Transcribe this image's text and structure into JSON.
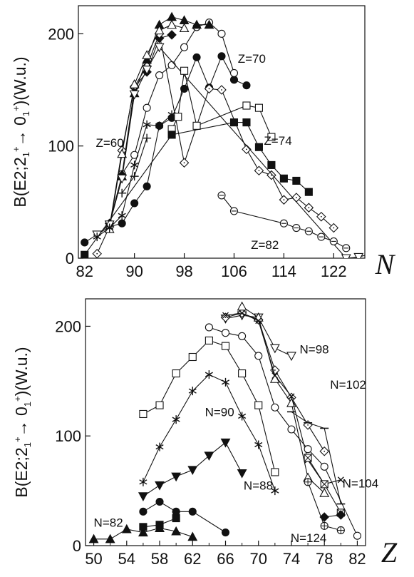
{
  "chart_data": [
    {
      "type": "scatter",
      "xlabel": "N",
      "ylabel_parts": [
        "B(E2;2",
        "1",
        "+",
        "→ 0",
        "1",
        "+",
        ")(W.u.)"
      ],
      "xlim": [
        81,
        127
      ],
      "ylim": [
        0,
        225
      ],
      "xticks": [
        82,
        90,
        98,
        106,
        114,
        122
      ],
      "yticks": [
        0,
        100,
        200
      ],
      "annotations": [
        {
          "text": "Z=70",
          "x": 106.6,
          "y": 178
        },
        {
          "text": "Z=60",
          "x": 83.8,
          "y": 103
        },
        {
          "text": "Z=74",
          "x": 110.8,
          "y": 105
        },
        {
          "text": "Z=82",
          "x": 108.7,
          "y": 12
        }
      ],
      "series": [
        {
          "marker": "filled-circle",
          "points": [
            [
              82,
              14
            ],
            [
              86,
              28
            ],
            [
              88,
              31
            ],
            [
              90,
              49
            ],
            [
              92,
              64
            ],
            [
              94,
              118
            ],
            [
              96,
              125
            ],
            [
              98,
              151
            ],
            [
              100,
              179
            ],
            [
              102,
              152
            ],
            [
              104,
              180
            ],
            [
              106,
              159
            ],
            [
              108,
              154
            ]
          ]
        },
        {
          "marker": "open-circle",
          "points": [
            [
              88,
              75
            ],
            [
              90,
              92
            ],
            [
              92,
              134
            ],
            [
              94,
              163
            ],
            [
              96,
              172
            ],
            [
              98,
              188
            ],
            [
              100,
              206
            ],
            [
              102,
              210
            ],
            [
              104,
              200
            ],
            [
              106,
              165
            ]
          ]
        },
        {
          "marker": "filled-diamond",
          "points": [
            [
              86,
              31
            ],
            [
              88,
              74
            ],
            [
              90,
              152
            ],
            [
              92,
              166
            ],
            [
              94,
              196
            ],
            [
              96,
              199
            ]
          ]
        },
        {
          "marker": "open-diamond",
          "points": [
            [
              84,
              4
            ],
            [
              86,
              28
            ],
            [
              88,
              96
            ],
            [
              90,
              153
            ],
            [
              92,
              171
            ],
            [
              94,
              200
            ],
            [
              98,
              85
            ],
            [
              102,
              151
            ],
            [
              104,
              150
            ],
            [
              108,
              97
            ],
            [
              110,
              78
            ],
            [
              112,
              74
            ],
            [
              114,
              52
            ],
            [
              116,
              54
            ],
            [
              118,
              45
            ],
            [
              120,
              37
            ],
            [
              122,
              27
            ]
          ]
        },
        {
          "marker": "filled-triangle",
          "points": [
            [
              88,
              73
            ],
            [
              90,
              147
            ],
            [
              92,
              177
            ],
            [
              94,
              208
            ],
            [
              96,
              215
            ],
            [
              98,
              212
            ],
            [
              100,
              208
            ],
            [
              102,
              208
            ]
          ]
        },
        {
          "marker": "open-triangle",
          "points": [
            [
              86,
              26
            ],
            [
              88,
              93
            ],
            [
              90,
              155
            ],
            [
              92,
              181
            ],
            [
              94,
              203
            ],
            [
              96,
              208
            ],
            [
              98,
              205
            ]
          ]
        },
        {
          "marker": "open-inverted-triangle",
          "points": [
            [
              84,
              21
            ],
            [
              86,
              30
            ],
            [
              88,
              71
            ],
            [
              90,
              146
            ],
            [
              92,
              168
            ],
            [
              94,
              188
            ],
            [
              124,
              0
            ],
            [
              126,
              1
            ],
            [
              128,
              4
            ]
          ]
        },
        {
          "marker": "asterisk",
          "points": [
            [
              84,
              19
            ],
            [
              86,
              27
            ],
            [
              88,
              38
            ],
            [
              90,
              83
            ],
            [
              92,
              119
            ],
            [
              94,
              118
            ],
            [
              96,
              128
            ]
          ]
        },
        {
          "marker": "plus",
          "points": [
            [
              88,
              58
            ],
            [
              90,
              73
            ],
            [
              92,
              107
            ]
          ]
        },
        {
          "marker": "open-square",
          "points": [
            [
              96,
              115
            ],
            [
              97,
              126
            ],
            [
              98,
              167
            ],
            [
              100,
              118
            ],
            [
              108,
              136
            ],
            [
              110,
              134
            ],
            [
              112,
              108
            ]
          ]
        },
        {
          "marker": "filled-square",
          "points": [
            [
              82,
              3
            ],
            [
              96,
              110
            ],
            [
              106,
              121
            ],
            [
              108,
              121
            ],
            [
              110,
              99
            ],
            [
              112,
              83
            ],
            [
              114,
              71
            ],
            [
              116,
              69
            ],
            [
              118,
              59
            ]
          ]
        },
        {
          "marker": "circle-minus",
          "points": [
            [
              104,
              56
            ],
            [
              106,
              42
            ],
            [
              114,
              31
            ],
            [
              116,
              27
            ],
            [
              118,
              24
            ],
            [
              120,
              19
            ],
            [
              122,
              15
            ],
            [
              124,
              9
            ]
          ]
        }
      ]
    },
    {
      "type": "scatter",
      "xlabel": "Z",
      "ylabel_parts": [
        "B(E2;2",
        "1",
        "+",
        "→ 0",
        "1",
        "+",
        ")(W.u.)"
      ],
      "xlim": [
        49,
        83
      ],
      "ylim": [
        0,
        225
      ],
      "xticks": [
        50,
        54,
        58,
        62,
        66,
        70,
        74,
        78,
        82
      ],
      "xticks_minor": [
        52,
        56,
        60,
        64,
        68,
        72,
        76,
        80
      ],
      "yticks": [
        0,
        100,
        200
      ],
      "annotations": [
        {
          "text": "N=98",
          "x": 75,
          "y": 179
        },
        {
          "text": "N=102",
          "x": 78.7,
          "y": 147
        },
        {
          "text": "N=90",
          "x": 63.5,
          "y": 122
        },
        {
          "text": "N=104",
          "x": 80.2,
          "y": 57
        },
        {
          "text": "N=88",
          "x": 68.2,
          "y": 55
        },
        {
          "text": "N=82",
          "x": 50,
          "y": 21
        },
        {
          "text": "N=124",
          "x": 73.9,
          "y": 7
        }
      ],
      "series": [
        {
          "name": "N=98",
          "marker": "open-inverted-triangle",
          "points": [
            [
              66,
              207
            ],
            [
              68,
              210
            ],
            [
              70,
              208
            ],
            [
              72,
              180
            ],
            [
              74,
              173
            ]
          ]
        },
        {
          "name": "N=102",
          "marker": "open-diamond",
          "points": [
            [
              66,
              208
            ],
            [
              68,
              212
            ],
            [
              70,
              206
            ],
            [
              72,
              160
            ],
            [
              74,
              135
            ],
            [
              76,
              110
            ],
            [
              78,
              86
            ]
          ]
        },
        {
          "marker": "open-triangle",
          "points": [
            [
              68,
              218
            ],
            [
              70,
              208
            ],
            [
              72,
              152
            ],
            [
              74,
              130
            ],
            [
              76,
              62
            ],
            [
              78,
              48
            ]
          ]
        },
        {
          "marker": "x-cross",
          "points": [
            [
              66,
              210
            ],
            [
              68,
              212
            ],
            [
              70,
              205
            ],
            [
              72,
              155
            ],
            [
              74,
              136
            ],
            [
              76,
              78
            ],
            [
              78,
              56
            ],
            [
              80,
              60
            ]
          ]
        },
        {
          "name": "N=104",
          "marker": "dash",
          "points": [
            [
              74,
              122
            ],
            [
              76,
              112
            ],
            [
              78,
              107
            ],
            [
              80,
              38
            ]
          ]
        },
        {
          "marker": "open-circle",
          "points": [
            [
              64,
              199
            ],
            [
              66,
              194
            ],
            [
              68,
              191
            ],
            [
              70,
              173
            ],
            [
              72,
              126
            ],
            [
              74,
              106
            ],
            [
              76,
              88
            ],
            [
              78,
              72
            ],
            [
              82,
              9
            ]
          ]
        },
        {
          "marker": "open-square",
          "points": [
            [
              56,
              120
            ],
            [
              58,
              128
            ],
            [
              60,
              157
            ],
            [
              62,
              172
            ],
            [
              64,
              187
            ],
            [
              66,
              182
            ],
            [
              68,
              157
            ],
            [
              70,
              128
            ],
            [
              72,
              67
            ]
          ]
        },
        {
          "name": "N=90",
          "marker": "asterisk",
          "points": [
            [
              56,
              58
            ],
            [
              58,
              90
            ],
            [
              60,
              115
            ],
            [
              62,
              141
            ],
            [
              64,
              156
            ],
            [
              66,
              149
            ],
            [
              68,
              118
            ],
            [
              70,
              92
            ],
            [
              72,
              50
            ]
          ]
        },
        {
          "name": "N=88",
          "marker": "filled-inverted-triangle",
          "points": [
            [
              56,
              45
            ],
            [
              58,
              55
            ],
            [
              60,
              63
            ],
            [
              62,
              69
            ],
            [
              64,
              82
            ],
            [
              66,
              94
            ],
            [
              68,
              66
            ]
          ]
        },
        {
          "marker": "filled-circle",
          "points": [
            [
              56,
              31
            ],
            [
              58,
              40
            ],
            [
              60,
              31
            ],
            [
              62,
              31
            ],
            [
              66,
              12
            ]
          ]
        },
        {
          "marker": "filled-square",
          "points": [
            [
              56,
              17
            ],
            [
              58,
              19
            ],
            [
              60,
              25
            ]
          ]
        },
        {
          "name": "N=82",
          "marker": "filled-triangle",
          "points": [
            [
              50,
              6
            ],
            [
              52,
              6
            ],
            [
              54,
              15
            ],
            [
              56,
              12
            ],
            [
              58,
              16
            ],
            [
              60,
              13
            ],
            [
              62,
              8
            ]
          ]
        },
        {
          "marker": "box-x",
          "points": [
            [
              76,
              80
            ],
            [
              78,
              56
            ],
            [
              80,
              30
            ]
          ]
        },
        {
          "name": "N=124",
          "marker": "circle-plus",
          "points": [
            [
              76,
              58
            ],
            [
              78,
              18
            ],
            [
              80,
              14
            ]
          ]
        },
        {
          "marker": "filled-diamond",
          "points": [
            [
              78,
              26
            ],
            [
              80,
              28
            ]
          ]
        }
      ]
    }
  ]
}
